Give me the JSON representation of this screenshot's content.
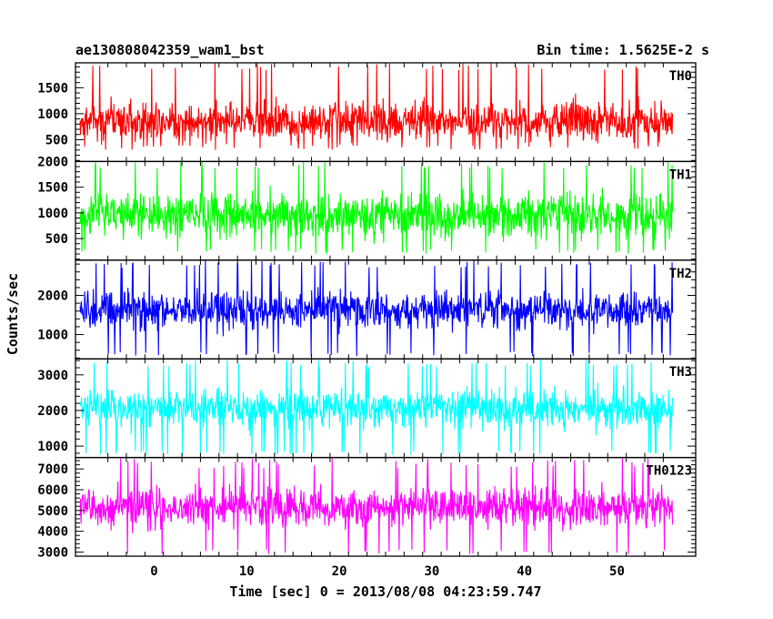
{
  "header": {
    "left_title": "ae130808042359_wam1_bst",
    "right_title": "Bin time: 1.5625E-2 s"
  },
  "chart_data": {
    "type": "line",
    "xlabel": "Time [sec] 0 = 2013/08/08 04:23:59.747",
    "ylabel": "Counts/sec",
    "xlim": [
      -8.5,
      58.5
    ],
    "x_range": [
      -8,
      56
    ],
    "x_ticks": [
      0,
      10,
      20,
      30,
      40,
      50
    ],
    "grid": false,
    "panels": [
      {
        "name": "TH0",
        "color": "#ff0000",
        "ylim": [
          80,
          1980
        ],
        "yticks": [
          500,
          1000,
          1500
        ],
        "center": 860,
        "noise": 300,
        "min": 300,
        "max": 1980
      },
      {
        "name": "TH1",
        "color": "#00ff00",
        "ylim": [
          80,
          2000
        ],
        "yticks": [
          500,
          1000,
          1500,
          2000
        ],
        "center": 960,
        "noise": 330,
        "min": 200,
        "max": 2000
      },
      {
        "name": "TH2",
        "color": "#0000ff",
        "ylim": [
          380,
          2900
        ],
        "yticks": [
          1000,
          2000
        ],
        "center": 1620,
        "noise": 380,
        "min": 450,
        "max": 2900
      },
      {
        "name": "TH3",
        "color": "#00ffff",
        "ylim": [
          680,
          3450
        ],
        "yticks": [
          1000,
          2000,
          3000
        ],
        "center": 2060,
        "noise": 420,
        "min": 750,
        "max": 3450
      },
      {
        "name": "TH0123",
        "color": "#ff00ff",
        "ylim": [
          2800,
          7550
        ],
        "yticks": [
          3000,
          4000,
          5000,
          6000,
          7000
        ],
        "center": 5150,
        "noise": 750,
        "min": 2900,
        "max": 7550
      }
    ]
  }
}
